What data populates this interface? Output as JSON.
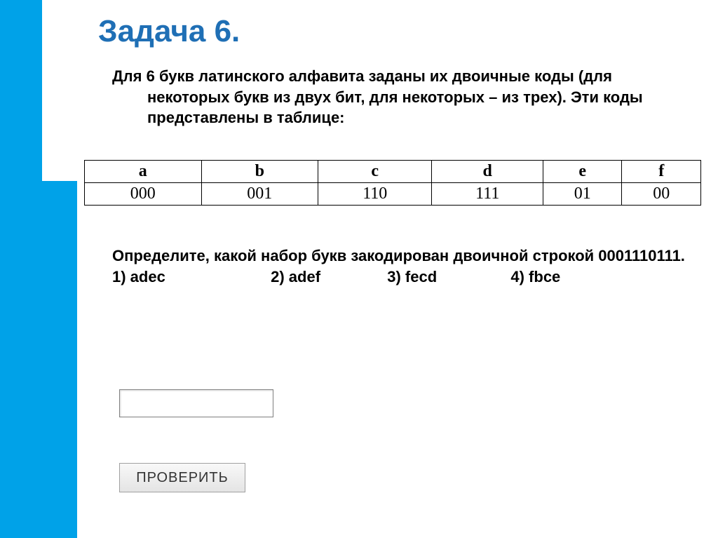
{
  "task": {
    "title": "Задача 6.",
    "intro": "Для 6 букв латинского алфавита заданы их двоичные коды (для некоторых букв из двух бит, для некоторых – из трех). Эти коды представлены в таблице:"
  },
  "table": {
    "headers": [
      "a",
      "b",
      "c",
      "d",
      "e",
      "f"
    ],
    "values": [
      "000",
      "001",
      "110",
      "111",
      "01",
      "00"
    ]
  },
  "question": {
    "prompt": "Определите, какой набор букв закодирован двоичной строкой   0001110111.",
    "options": {
      "o1": "1) adec",
      "o2": "2) adef",
      "o3": "3) fecd",
      "o4": "4) fbce"
    }
  },
  "input": {
    "placeholder": ""
  },
  "button": {
    "label": "ПРОВЕРИТЬ"
  },
  "colors": {
    "accent_blue": "#00a2e8",
    "title_blue": "#1f6fb5",
    "border": "#000000",
    "bg": "#ffffff"
  }
}
